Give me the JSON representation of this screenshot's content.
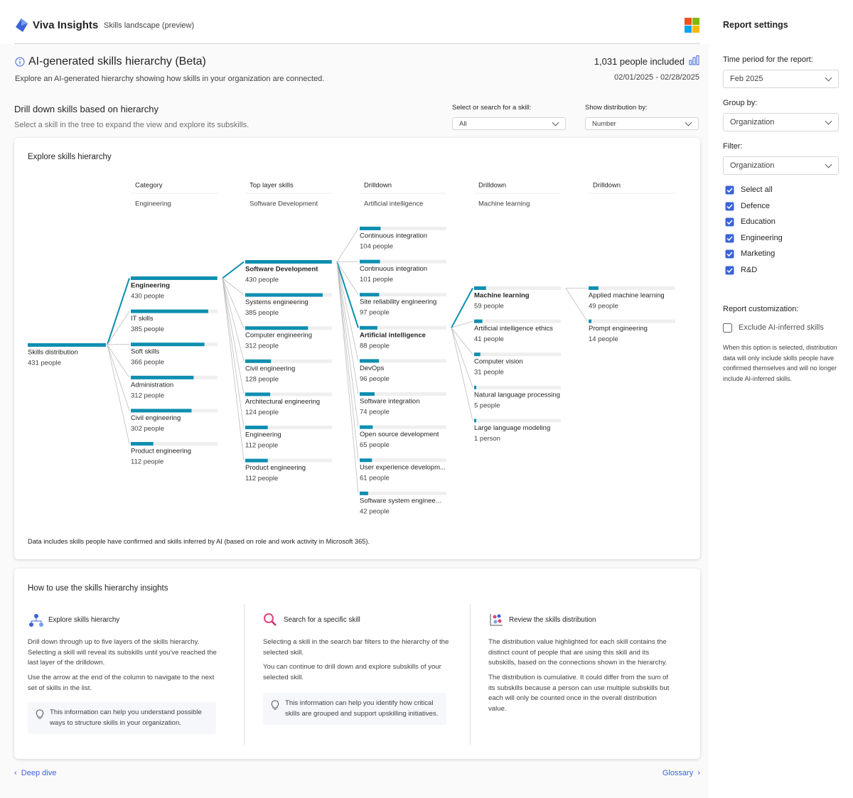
{
  "header": {
    "app": "Viva Insights",
    "page": "Skills landscape (preview)"
  },
  "settings": {
    "title": "Report settings",
    "time_period": {
      "label": "Time period for the report:",
      "value": "Feb 2025"
    },
    "group_by": {
      "label": "Group by:",
      "value": "Organization"
    },
    "filter": {
      "label": "Filter:",
      "value": "Organization",
      "options": [
        {
          "label": "Select all",
          "checked": true
        },
        {
          "label": "Defence",
          "checked": true
        },
        {
          "label": "Education",
          "checked": true
        },
        {
          "label": "Engineering",
          "checked": true
        },
        {
          "label": "Marketing",
          "checked": true
        },
        {
          "label": "R&D",
          "checked": true
        }
      ]
    },
    "customization": {
      "label": "Report customization:",
      "option": {
        "label": "Exclude AI-inferred skills",
        "checked": false
      },
      "note": "When this option is selected, distribution data will only include skills people have confirmed themselves and will no longer include AI-inferred skills."
    }
  },
  "report": {
    "title": "AI-generated skills hierarchy (Beta)",
    "subtitle": "Explore an AI-generated hierarchy showing how skills in your organization are connected.",
    "people_included": "1,031 people included",
    "date_range": "02/01/2025 - 02/28/2025"
  },
  "drilldown": {
    "title": "Drill down skills based on hierarchy",
    "subtitle": "Select a skill in the tree to expand the view and explore its subskills.",
    "search": {
      "label": "Select or search for a skill:",
      "value": "All"
    },
    "distribution": {
      "label": "Show distribution by:",
      "value": "Number"
    }
  },
  "hierarchy": {
    "title": "Explore skills hierarchy",
    "columns": [
      {
        "header": "Category",
        "selected": "Engineering"
      },
      {
        "header": "Top layer skills",
        "selected": "Software Development"
      },
      {
        "header": "Drilldown",
        "selected": "Artificial intelligence"
      },
      {
        "header": "Drilldown",
        "selected": "Machine learning"
      },
      {
        "header": "Drilldown"
      }
    ],
    "root": {
      "name": "Skills distribution",
      "people": 431,
      "people_label": "431 people"
    },
    "levels": [
      [
        {
          "name": "Engineering",
          "people": 430,
          "people_label": "430 people",
          "selected": true
        },
        {
          "name": "IT skills",
          "people": 385,
          "people_label": "385 people"
        },
        {
          "name": "Soft skills",
          "people": 366,
          "people_label": "366 people"
        },
        {
          "name": "Administration",
          "people": 312,
          "people_label": "312 people"
        },
        {
          "name": "Civil engineering",
          "people": 302,
          "people_label": "302 people"
        },
        {
          "name": "Product engineering",
          "people": 112,
          "people_label": "112 people"
        }
      ],
      [
        {
          "name": "Software Development",
          "people": 430,
          "people_label": "430 people",
          "selected": true
        },
        {
          "name": "Systems engineering",
          "people": 385,
          "people_label": "385 people"
        },
        {
          "name": "Computer engineering",
          "people": 312,
          "people_label": "312 people"
        },
        {
          "name": "Civil engineering",
          "people": 128,
          "people_label": "128 people"
        },
        {
          "name": "Architectural engineering",
          "people": 124,
          "people_label": "124 people"
        },
        {
          "name": "Engineering",
          "people": 112,
          "people_label": "112 people"
        },
        {
          "name": "Product engineering",
          "people": 112,
          "people_label": "112 people"
        }
      ],
      [
        {
          "name": "Continuous integration",
          "people": 104,
          "people_label": "104 people"
        },
        {
          "name": "Continuous integration",
          "people": 101,
          "people_label": "101 people"
        },
        {
          "name": "Site reliability engineering",
          "people": 97,
          "people_label": "97 people"
        },
        {
          "name": "Artificial intelligence",
          "people": 88,
          "people_label": "88 people",
          "selected": true
        },
        {
          "name": "DevOps",
          "people": 96,
          "people_label": "96 people"
        },
        {
          "name": "Software integration",
          "people": 74,
          "people_label": "74 people"
        },
        {
          "name": "Open source development",
          "people": 65,
          "people_label": "65 people"
        },
        {
          "name": "User experience developm...",
          "people": 61,
          "people_label": "61 people"
        },
        {
          "name": "Software system enginee...",
          "people": 42,
          "people_label": "42 people"
        }
      ],
      [
        {
          "name": "Machine learning",
          "people": 59,
          "people_label": "59 people",
          "selected": true
        },
        {
          "name": "Artificial intelligence ethics",
          "people": 41,
          "people_label": "41 people"
        },
        {
          "name": "Computer vision",
          "people": 31,
          "people_label": "31 people"
        },
        {
          "name": "Natural language processing",
          "people": 5,
          "people_label": "5 people"
        },
        {
          "name": "Large language modeling",
          "people": 1,
          "people_label": "1 person"
        }
      ],
      [
        {
          "name": "Applied machine learning",
          "people": 49,
          "people_label": "49 people"
        },
        {
          "name": "Prompt engineering",
          "people": 14,
          "people_label": "14 people"
        }
      ]
    ],
    "note": "Data includes skills people have confirmed and skills inferred by AI (based on role and work activity in Microsoft 365)."
  },
  "howto": {
    "title": "How to use the skills hierarchy insights",
    "sections": [
      {
        "heading": "Explore skills hierarchy",
        "paragraphs": [
          "Drill down through up to five layers of the skills hierarchy. Selecting a skill will reveal its subskills until you've reached the last layer of the drilldown.",
          "Use the arrow at the end of the column to navigate to the next set of skills in the list."
        ],
        "tip": "This information can help you understand possible ways to structure skills in your organization."
      },
      {
        "heading": "Search for a specific skill",
        "paragraphs": [
          "Selecting a skill in the search bar filters to the hierarchy of the selected skill.",
          "You can continue to drill down and explore subskills of your selected skill."
        ],
        "tip": "This information can help you identify how critical skills are grouped and support upskilling initiatives."
      },
      {
        "heading": "Review the skills distribution",
        "paragraphs": [
          "The distribution value highlighted for each skill contains the distinct count of people that are using this skill and its subskills, based on the connections shown in the hierarchy.",
          "The distribution is cumulative. It could differ from the sum of its subskills because a person can use multiple subskills but each will only be counted once in the overall distribution value."
        ]
      }
    ]
  },
  "footer": {
    "back": "Deep dive",
    "next": "Glossary"
  }
}
